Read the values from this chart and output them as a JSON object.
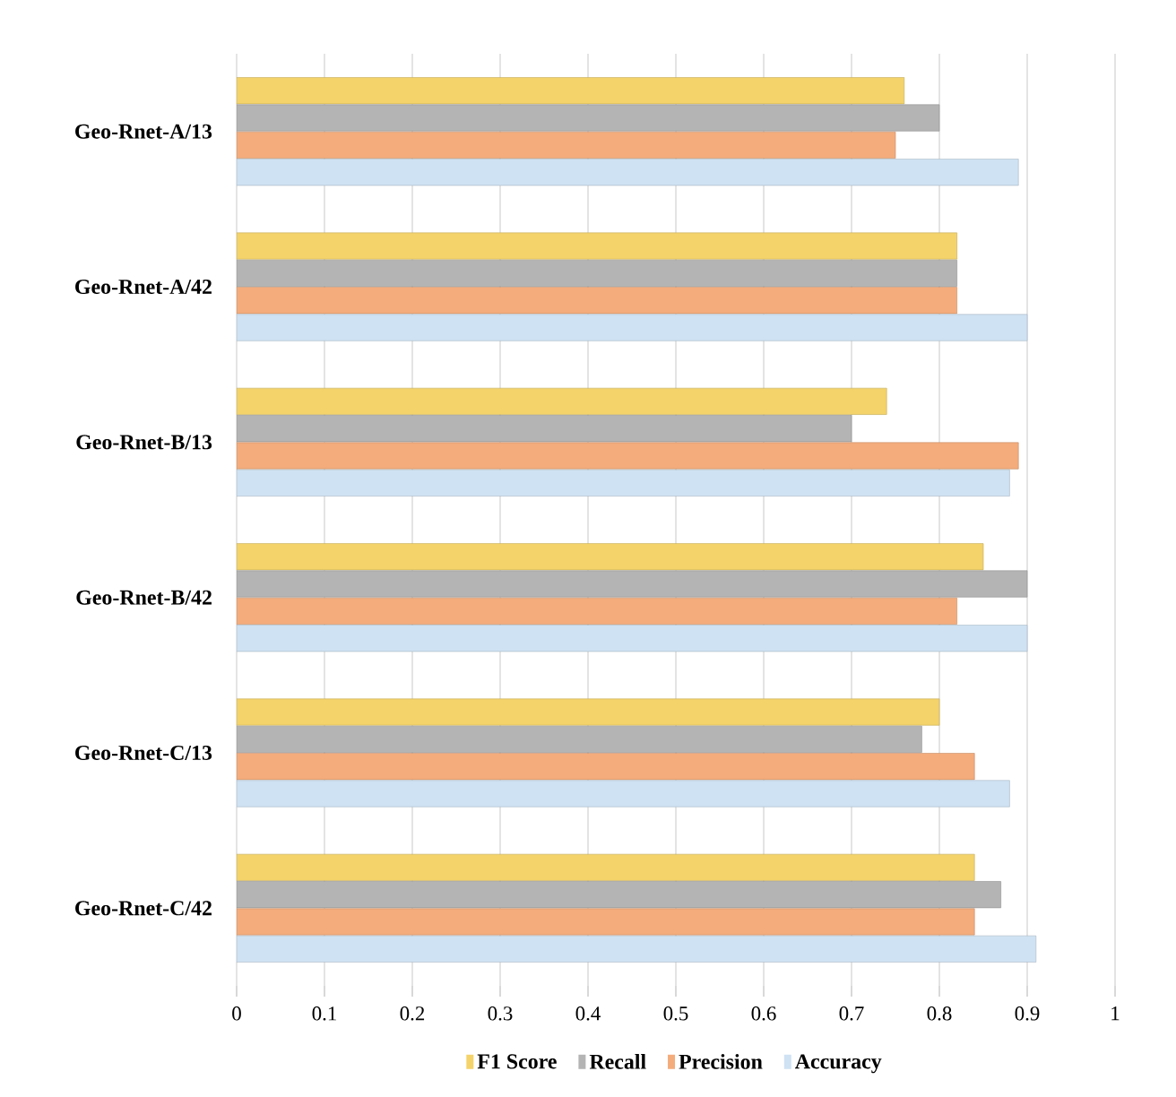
{
  "chart_data": {
    "type": "bar",
    "orientation": "horizontal",
    "categories": [
      "Geo-Rnet-A/13",
      "Geo-Rnet-A/42",
      "Geo-Rnet-B/13",
      "Geo-Rnet-B/42",
      "Geo-Rnet-C/13",
      "Geo-Rnet-C/42"
    ],
    "series": [
      {
        "name": "F1 Score",
        "color": "#f3d36a",
        "values": [
          0.76,
          0.82,
          0.74,
          0.85,
          0.8,
          0.84
        ]
      },
      {
        "name": "Recall",
        "color": "#b4b4b4",
        "values": [
          0.8,
          0.82,
          0.7,
          0.9,
          0.78,
          0.87
        ]
      },
      {
        "name": "Precision",
        "color": "#f4ac7c",
        "values": [
          0.75,
          0.82,
          0.89,
          0.82,
          0.84,
          0.84
        ]
      },
      {
        "name": "Accuracy",
        "color": "#cfe2f3",
        "values": [
          0.89,
          0.9,
          0.88,
          0.9,
          0.88,
          0.91
        ]
      }
    ],
    "xlim": [
      0,
      1
    ],
    "xticks": [
      0,
      0.1,
      0.2,
      0.3,
      0.4,
      0.5,
      0.6,
      0.7,
      0.8,
      0.9,
      1
    ],
    "grid": "x",
    "legend": "bottom"
  }
}
